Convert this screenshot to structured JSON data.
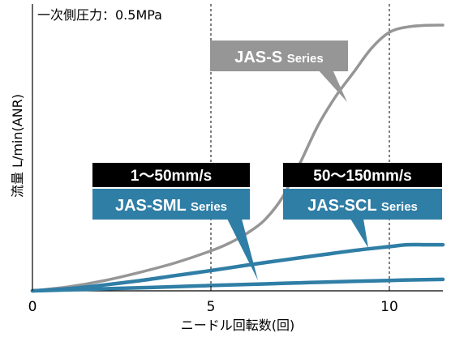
{
  "chart_data": {
    "type": "line",
    "title": "",
    "condition_note": "一次側圧力：0.5MPa",
    "xlabel": "ニードル回転数(回)",
    "ylabel": "流量 L/min(ANR)",
    "xlim": [
      0,
      11.5
    ],
    "x_ticks": [
      {
        "value": 0,
        "label": "0"
      },
      {
        "value": 5,
        "label": "5"
      },
      {
        "value": 10,
        "label": "10"
      }
    ],
    "vertical_gridlines_at": [
      5,
      10
    ],
    "y_tick_labels_shown": false,
    "ylim": [
      0,
      100
    ],
    "colors": {
      "gray": "#969696",
      "blue": "#2f7ea6",
      "black": "#000000"
    },
    "series": [
      {
        "name": "JAS-S",
        "name_suffix": "Series",
        "color": "#969696",
        "x": [
          0,
          1,
          2,
          3,
          4,
          5,
          5.5,
          6,
          6.5,
          7,
          7.5,
          8,
          8.5,
          9,
          9.5,
          10,
          10.5,
          11,
          11.5
        ],
        "y": [
          0,
          1.5,
          3.8,
          6.9,
          10.5,
          15,
          17.8,
          21.5,
          26.5,
          35,
          48,
          62,
          73,
          82,
          91,
          97,
          99,
          99.6,
          99.7
        ]
      },
      {
        "name": "JAS-SCL",
        "name_suffix": "Series",
        "speed_range": "50〜150mm/s",
        "color": "#2f7ea6",
        "x": [
          0,
          1,
          2,
          3,
          4,
          5,
          6,
          7,
          8,
          9,
          10,
          10.5,
          11,
          11.5
        ],
        "y": [
          0,
          0.8,
          2.2,
          3.8,
          5.7,
          7.6,
          9.6,
          11.5,
          13.3,
          15.1,
          16.6,
          17.3,
          17.3,
          17.3
        ]
      },
      {
        "name": "JAS-SML",
        "name_suffix": "Series",
        "speed_range": "1〜50mm/s",
        "color": "#2f7ea6",
        "x": [
          0,
          1,
          2,
          3,
          4,
          5,
          6,
          7,
          8,
          9,
          10,
          11,
          11.5
        ],
        "y": [
          0,
          0.35,
          0.75,
          1.15,
          1.55,
          2.0,
          2.4,
          2.8,
          3.2,
          3.55,
          3.9,
          4.2,
          4.3
        ]
      }
    ]
  }
}
